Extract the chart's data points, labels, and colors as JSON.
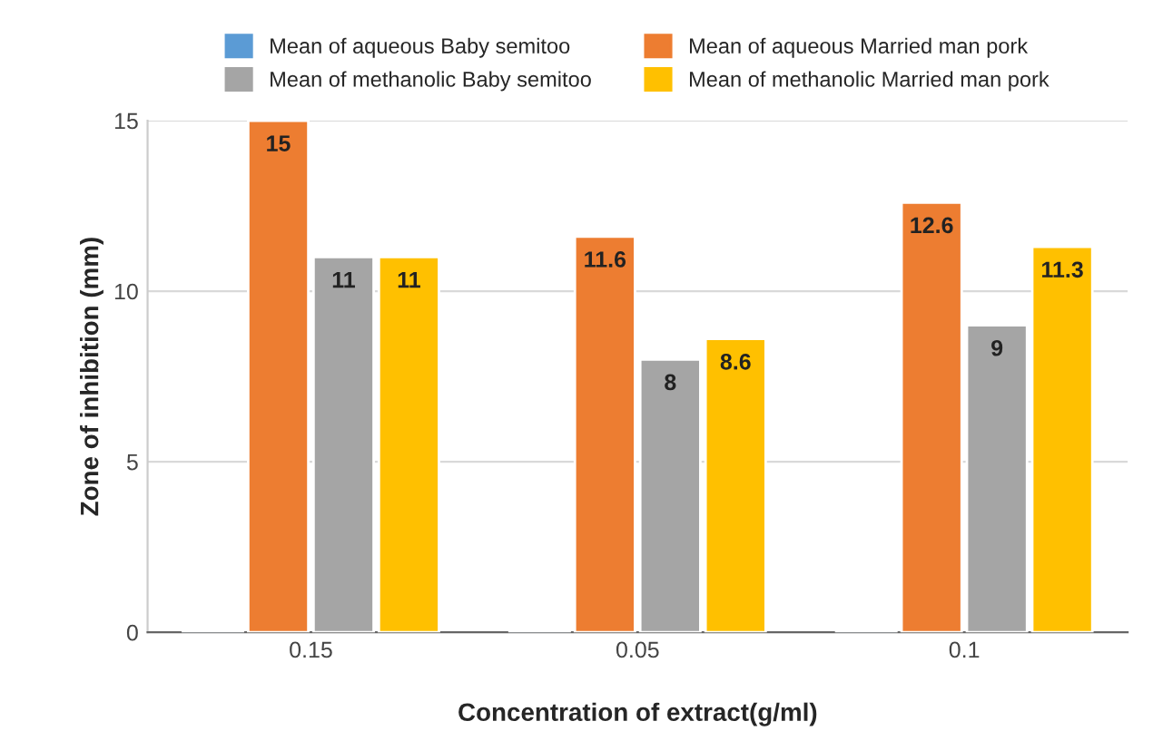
{
  "chart_data": {
    "type": "bar",
    "xlabel": "Concentration of extract(g/ml)",
    "ylabel": "Zone of inhibition (mm)",
    "categories": [
      "0.15",
      "0.05",
      "0.1"
    ],
    "series": [
      {
        "name": "Mean of aqueous Baby semitoo",
        "color": "#5b9bd5",
        "values": [
          0.05,
          0.05,
          0.05
        ],
        "value_labels": [
          null,
          null,
          null
        ]
      },
      {
        "name": "Mean of aqueous Married man pork",
        "color": "#ed7d31",
        "values": [
          15,
          11.6,
          12.6
        ],
        "value_labels": [
          "15",
          "11.6",
          "12.6"
        ]
      },
      {
        "name": "Mean of methanolic Baby semitoo",
        "color": "#a5a5a5",
        "values": [
          11,
          8,
          9
        ],
        "value_labels": [
          "11",
          "8",
          "9"
        ]
      },
      {
        "name": "Mean of methanolic Married man pork",
        "color": "#ffc000",
        "values": [
          11,
          8.6,
          11.3
        ],
        "value_labels": [
          "11",
          "8.6",
          "11.3"
        ]
      }
    ],
    "ylim": [
      0,
      15
    ],
    "yticks": [
      0,
      5,
      10,
      15
    ],
    "grid": "y",
    "legend": "top"
  }
}
